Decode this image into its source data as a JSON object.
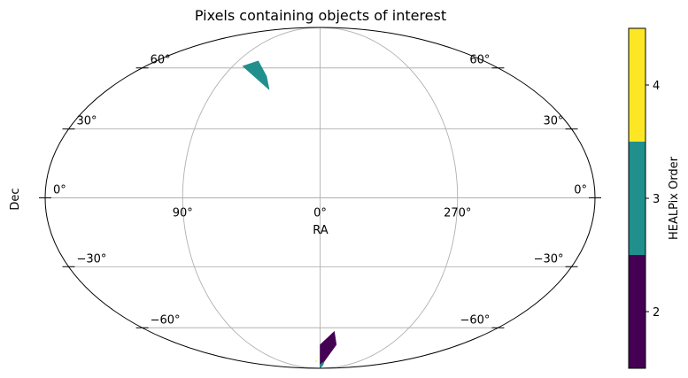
{
  "chart_data": {
    "type": "heatmap",
    "projection": "mollweide",
    "title": "Pixels containing objects of interest",
    "xlabel": "RA",
    "ylabel": "Dec",
    "grid": true,
    "ra_ticks": [
      {
        "ra": 90,
        "label": "90°"
      },
      {
        "ra": 0,
        "label": "0°"
      },
      {
        "ra": 270,
        "label": "270°"
      }
    ],
    "dec_ticks": [
      {
        "dec": 60,
        "label": "60°"
      },
      {
        "dec": 30,
        "label": "30°"
      },
      {
        "dec": 0,
        "label": "0°"
      },
      {
        "dec": -30,
        "label": "−30°"
      },
      {
        "dec": -60,
        "label": "−60°"
      }
    ],
    "colorbar": {
      "label": "HEALPix Order",
      "range": [
        1.5,
        4.5
      ],
      "ticks": [
        {
          "value": 2,
          "label": "2"
        },
        {
          "value": 3,
          "label": "3"
        },
        {
          "value": 4,
          "label": "4"
        }
      ],
      "levels": [
        {
          "order": 2,
          "color": "#440154"
        },
        {
          "order": 3,
          "color": "#21908d"
        },
        {
          "order": 4,
          "color": "#fde725"
        }
      ]
    },
    "pixels": [
      {
        "order": 3,
        "color": "#21908d",
        "corners": [
          [
            43,
            48.5
          ],
          [
            50,
            55.5
          ],
          [
            68,
            64
          ],
          [
            80,
            61
          ]
        ]
      },
      {
        "order": 2,
        "color": "#440154",
        "corners": [
          [
            0,
            -70
          ],
          [
            345,
            -62
          ],
          [
            339,
            -70
          ],
          [
            0,
            -88
          ]
        ]
      },
      {
        "order": 3,
        "color": "#21908d",
        "corners": [
          [
            0,
            -85
          ],
          [
            350,
            -82
          ],
          [
            350,
            -86
          ],
          [
            0,
            -90
          ]
        ]
      },
      {
        "order": 4,
        "color": "#fde725",
        "corners": [
          [
            7,
            -81
          ],
          [
            10,
            -82.5
          ],
          [
            11,
            -82.5
          ],
          [
            8,
            -81
          ]
        ]
      }
    ]
  }
}
